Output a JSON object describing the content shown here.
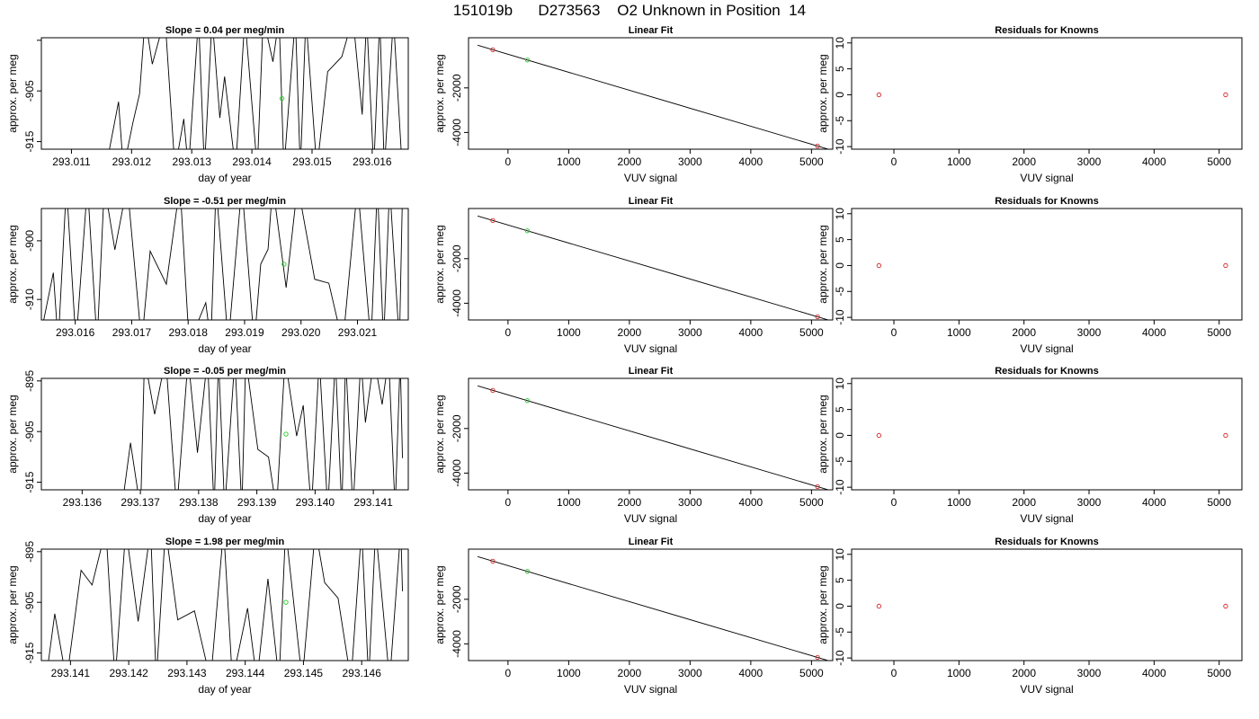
{
  "page_title": "151019b      D273563    O2 Unknown in Position  14",
  "colors": {
    "known_point": "#d62728",
    "unknown_point": "#22cc22",
    "line": "#000000"
  },
  "chart_data": [
    {
      "type": "line",
      "title": "Slope =  0.04  per meg/min",
      "xlabel": "day of year",
      "ylabel": "approx. per meg",
      "xlim": [
        293.0105,
        293.0166
      ],
      "ylim": [
        -916.5,
        -894.5
      ],
      "xticks": [
        293.011,
        293.012,
        293.013,
        293.014,
        293.015,
        293.016
      ],
      "xtick_labels": [
        "293.011",
        "293.012",
        "293.013",
        "293.014",
        "293.015",
        "293.016"
      ],
      "yticks": [
        -915,
        -905,
        -895
      ],
      "ytick_labels": [
        "-915",
        "-905",
        ""
      ],
      "trace_x_start": 293.0116,
      "trace_x_end": 293.0165,
      "marker": {
        "x": 293.0145,
        "y": -906.5
      },
      "grid": false
    },
    {
      "type": "scatter",
      "title": "Linear Fit",
      "xlabel": "VUV signal",
      "ylabel": "approx. per meg",
      "xlim": [
        -650,
        5350
      ],
      "ylim": [
        -4750,
        250
      ],
      "xticks": [
        0,
        1000,
        2000,
        3000,
        4000,
        5000
      ],
      "xtick_labels": [
        "0",
        "1000",
        "2000",
        "3000",
        "4000",
        "5000"
      ],
      "yticks": [
        -4000,
        -2000
      ],
      "ytick_labels": [
        "-4000",
        "-2000"
      ],
      "fit_line": {
        "x": [
          -500,
          5300
        ],
        "y": [
          -87,
          -4770
        ]
      },
      "knowns": {
        "x": [
          -250,
          5100
        ],
        "y": [
          -290,
          -4610
        ]
      },
      "unknown": {
        "x": 320,
        "y": -750
      },
      "grid": false
    },
    {
      "type": "scatter",
      "title": "Residuals for Knowns",
      "xlabel": "VUV signal",
      "ylabel": "approx. per meg",
      "xlim": [
        -650,
        5350
      ],
      "ylim": [
        -10.5,
        11
      ],
      "xticks": [
        0,
        1000,
        2000,
        3000,
        4000,
        5000
      ],
      "xtick_labels": [
        "0",
        "1000",
        "2000",
        "3000",
        "4000",
        "5000"
      ],
      "yticks": [
        -10,
        -5,
        0,
        5,
        10
      ],
      "ytick_labels": [
        "-10",
        "-5",
        "0",
        "5",
        "10"
      ],
      "knowns": {
        "x": [
          -230,
          5100
        ],
        "y": [
          0,
          0
        ]
      },
      "grid": false
    },
    {
      "type": "line",
      "title": "Slope =  -0.51  per meg/min",
      "xlabel": "day of year",
      "ylabel": "approx. per meg",
      "xlim": [
        293.0154,
        293.0219
      ],
      "ylim": [
        -913.5,
        -894.5
      ],
      "xticks": [
        293.016,
        293.017,
        293.018,
        293.019,
        293.02,
        293.021
      ],
      "xtick_labels": [
        "293.016",
        "293.017",
        "293.018",
        "293.019",
        "293.020",
        "293.021"
      ],
      "yticks": [
        -910,
        -900
      ],
      "ytick_labels": [
        "-910",
        "-900"
      ],
      "trace_x_start": 293.0154,
      "trace_x_end": 293.0218,
      "marker": {
        "x": 293.0197,
        "y": -904
      },
      "grid": false
    },
    {
      "type": "scatter",
      "title": "Linear Fit",
      "xlabel": "VUV signal",
      "ylabel": "approx. per meg",
      "xlim": [
        -650,
        5350
      ],
      "ylim": [
        -4750,
        250
      ],
      "xticks": [
        0,
        1000,
        2000,
        3000,
        4000,
        5000
      ],
      "xtick_labels": [
        "0",
        "1000",
        "2000",
        "3000",
        "4000",
        "5000"
      ],
      "yticks": [
        -4000,
        -2000
      ],
      "ytick_labels": [
        "-4000",
        "-2000"
      ],
      "fit_line": {
        "x": [
          -500,
          5300
        ],
        "y": [
          -87,
          -4770
        ]
      },
      "knowns": {
        "x": [
          -250,
          5100
        ],
        "y": [
          -290,
          -4610
        ]
      },
      "unknown": {
        "x": 320,
        "y": -750
      },
      "grid": false
    },
    {
      "type": "scatter",
      "title": "Residuals for Knowns",
      "xlabel": "VUV signal",
      "ylabel": "approx. per meg",
      "xlim": [
        -650,
        5350
      ],
      "ylim": [
        -10.5,
        11
      ],
      "xticks": [
        0,
        1000,
        2000,
        3000,
        4000,
        5000
      ],
      "xtick_labels": [
        "0",
        "1000",
        "2000",
        "3000",
        "4000",
        "5000"
      ],
      "yticks": [
        -10,
        -5,
        0,
        5,
        10
      ],
      "ytick_labels": [
        "-10",
        "-5",
        "0",
        "5",
        "10"
      ],
      "knowns": {
        "x": [
          -230,
          5100
        ],
        "y": [
          0,
          0
        ]
      },
      "grid": false
    },
    {
      "type": "line",
      "title": "Slope =  -0.05  per meg/min",
      "xlabel": "day of year",
      "ylabel": "approx. per meg",
      "xlim": [
        293.1353,
        293.1416
      ],
      "ylim": [
        -916.5,
        -894.5
      ],
      "xticks": [
        293.136,
        293.137,
        293.138,
        293.139,
        293.14,
        293.141
      ],
      "xtick_labels": [
        "293.136",
        "293.137",
        "293.138",
        "293.139",
        "293.140",
        "293.141"
      ],
      "yticks": [
        -915,
        -905,
        -895
      ],
      "ytick_labels": [
        "-915",
        "-905",
        "-895"
      ],
      "trace_x_start": 293.1367,
      "trace_x_end": 293.1415,
      "marker": {
        "x": 293.1395,
        "y": -905.5
      },
      "grid": false
    },
    {
      "type": "scatter",
      "title": "Linear Fit",
      "xlabel": "VUV signal",
      "ylabel": "approx. per meg",
      "xlim": [
        -650,
        5350
      ],
      "ylim": [
        -4750,
        250
      ],
      "xticks": [
        0,
        1000,
        2000,
        3000,
        4000,
        5000
      ],
      "xtick_labels": [
        "0",
        "1000",
        "2000",
        "3000",
        "4000",
        "5000"
      ],
      "yticks": [
        -4000,
        -2000
      ],
      "ytick_labels": [
        "-4000",
        "-2000"
      ],
      "fit_line": {
        "x": [
          -500,
          5300
        ],
        "y": [
          -87,
          -4770
        ]
      },
      "knowns": {
        "x": [
          -250,
          5100
        ],
        "y": [
          -290,
          -4610
        ]
      },
      "unknown": {
        "x": 320,
        "y": -750
      },
      "grid": false
    },
    {
      "type": "scatter",
      "title": "Residuals for Knowns",
      "xlabel": "VUV signal",
      "ylabel": "approx. per meg",
      "xlim": [
        -650,
        5350
      ],
      "ylim": [
        -10.5,
        11
      ],
      "xticks": [
        0,
        1000,
        2000,
        3000,
        4000,
        5000
      ],
      "xtick_labels": [
        "0",
        "1000",
        "2000",
        "3000",
        "4000",
        "5000"
      ],
      "yticks": [
        -10,
        -5,
        0,
        5,
        10
      ],
      "ytick_labels": [
        "-10",
        "-5",
        "0",
        "5",
        "10"
      ],
      "knowns": {
        "x": [
          -230,
          5100
        ],
        "y": [
          0,
          0
        ]
      },
      "grid": false
    },
    {
      "type": "line",
      "title": "Slope =  1.98  per meg/min",
      "xlabel": "day of year",
      "ylabel": "approx. per meg",
      "xlim": [
        293.1405,
        293.1468
      ],
      "ylim": [
        -916.5,
        -894.5
      ],
      "xticks": [
        293.141,
        293.142,
        293.143,
        293.144,
        293.145,
        293.146
      ],
      "xtick_labels": [
        "293.141",
        "293.142",
        "293.143",
        "293.144",
        "293.145",
        "293.146"
      ],
      "yticks": [
        -915,
        -905,
        -895
      ],
      "ytick_labels": [
        "-915",
        "-905",
        "-895"
      ],
      "trace_x_start": 293.1406,
      "trace_x_end": 293.1467,
      "marker": {
        "x": 293.1447,
        "y": -905
      },
      "grid": false
    },
    {
      "type": "scatter",
      "title": "Linear Fit",
      "xlabel": "VUV signal",
      "ylabel": "approx. per meg",
      "xlim": [
        -650,
        5350
      ],
      "ylim": [
        -4750,
        250
      ],
      "xticks": [
        0,
        1000,
        2000,
        3000,
        4000,
        5000
      ],
      "xtick_labels": [
        "0",
        "1000",
        "2000",
        "3000",
        "4000",
        "5000"
      ],
      "yticks": [
        -4000,
        -2000
      ],
      "ytick_labels": [
        "-4000",
        "-2000"
      ],
      "fit_line": {
        "x": [
          -500,
          5300
        ],
        "y": [
          -87,
          -4770
        ]
      },
      "knowns": {
        "x": [
          -250,
          5100
        ],
        "y": [
          -290,
          -4610
        ]
      },
      "unknown": {
        "x": 320,
        "y": -750
      },
      "grid": false
    },
    {
      "type": "scatter",
      "title": "Residuals for Knowns",
      "xlabel": "VUV signal",
      "ylabel": "approx. per meg",
      "xlim": [
        -650,
        5350
      ],
      "ylim": [
        -10.5,
        11
      ],
      "xticks": [
        0,
        1000,
        2000,
        3000,
        4000,
        5000
      ],
      "xtick_labels": [
        "0",
        "1000",
        "2000",
        "3000",
        "4000",
        "5000"
      ],
      "yticks": [
        -10,
        -5,
        0,
        5,
        10
      ],
      "ytick_labels": [
        "-10",
        "-5",
        "0",
        "5",
        "10"
      ],
      "knowns": {
        "x": [
          -230,
          5100
        ],
        "y": [
          0,
          0
        ]
      },
      "grid": false
    }
  ]
}
